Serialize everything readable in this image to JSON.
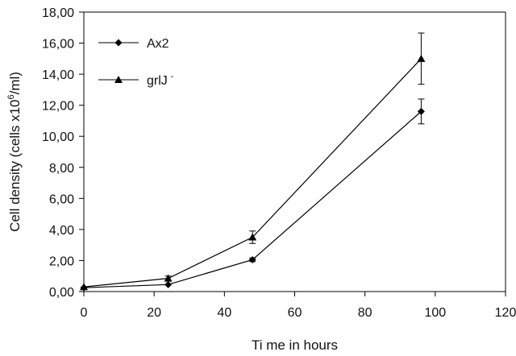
{
  "chart_data": {
    "type": "line",
    "title": "",
    "xlabel": "Ti me in hours",
    "ylabel": "Cell density (cells x10^6/ml)",
    "ylabel_parts": {
      "main": "Cell density (cells x10",
      "sup": "6",
      "tail": "/ml)"
    },
    "xlim": [
      0,
      120
    ],
    "ylim": [
      0,
      18
    ],
    "x_ticks": [
      0,
      20,
      40,
      60,
      80,
      100,
      120
    ],
    "x_tick_labels": [
      "0",
      "20",
      "40",
      "60",
      "80",
      "100",
      "120"
    ],
    "y_ticks": [
      0,
      2,
      4,
      6,
      8,
      10,
      12,
      14,
      16,
      18
    ],
    "y_tick_labels": [
      "0,00",
      "2,00",
      "4,00",
      "6,00",
      "8,00",
      "10,00",
      "12,00",
      "14,00",
      "16,00",
      "18,00"
    ],
    "grid": false,
    "legend_position": "top-left",
    "series": [
      {
        "name": "Ax2",
        "marker": "diamond",
        "color": "#000000",
        "x": [
          0,
          24,
          48,
          96
        ],
        "y": [
          0.25,
          0.45,
          2.05,
          11.6
        ],
        "error": [
          0.05,
          0.08,
          0.12,
          0.8
        ]
      },
      {
        "name": "grlJ -",
        "name_parts": {
          "main": "grlJ",
          "sup": "-"
        },
        "marker": "triangle",
        "color": "#000000",
        "x": [
          0,
          24,
          48,
          96
        ],
        "y": [
          0.3,
          0.85,
          3.5,
          15.0
        ],
        "error": [
          0.05,
          0.15,
          0.4,
          1.65
        ]
      }
    ]
  }
}
